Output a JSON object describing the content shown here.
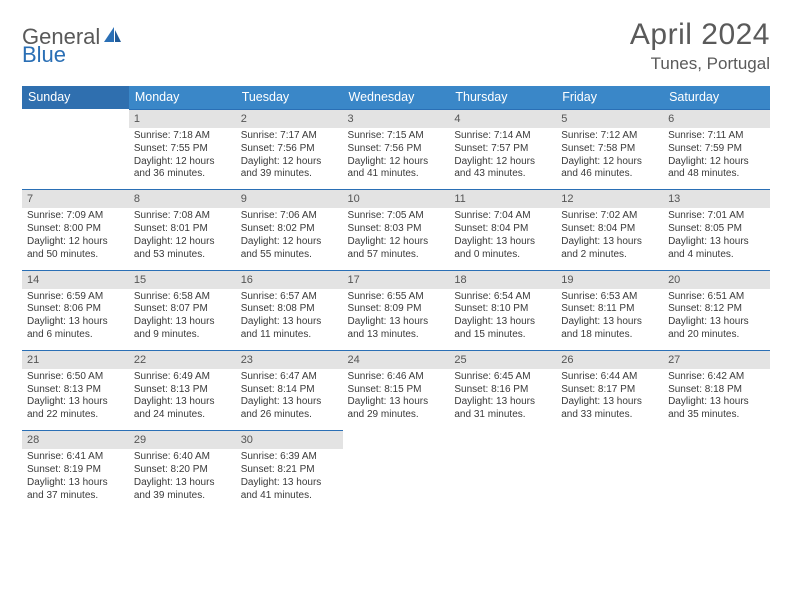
{
  "brand": {
    "general": "General",
    "blue": "Blue"
  },
  "title": "April 2024",
  "subtitle": "Tunes, Portugal",
  "colors": {
    "header_bg": "#3a87c8",
    "header_bg_sunday": "#2f6faf",
    "daynum_bg": "#e3e3e3",
    "daynum_border": "#2a6fb5",
    "text": "#3a3a3a",
    "title_text": "#5a5a5a",
    "brand_gray": "#595959",
    "brand_blue": "#2a6fb5",
    "background": "#ffffff"
  },
  "typography": {
    "title_fontsize": 30,
    "subtitle_fontsize": 17,
    "header_fontsize": 12.5,
    "daynum_fontsize": 11,
    "cell_fontsize": 10
  },
  "weekdays": [
    "Sunday",
    "Monday",
    "Tuesday",
    "Wednesday",
    "Thursday",
    "Friday",
    "Saturday"
  ],
  "weeks": [
    [
      {
        "n": "",
        "sr": "",
        "ss": "",
        "dl": ""
      },
      {
        "n": "1",
        "sr": "Sunrise: 7:18 AM",
        "ss": "Sunset: 7:55 PM",
        "dl": "Daylight: 12 hours and 36 minutes."
      },
      {
        "n": "2",
        "sr": "Sunrise: 7:17 AM",
        "ss": "Sunset: 7:56 PM",
        "dl": "Daylight: 12 hours and 39 minutes."
      },
      {
        "n": "3",
        "sr": "Sunrise: 7:15 AM",
        "ss": "Sunset: 7:56 PM",
        "dl": "Daylight: 12 hours and 41 minutes."
      },
      {
        "n": "4",
        "sr": "Sunrise: 7:14 AM",
        "ss": "Sunset: 7:57 PM",
        "dl": "Daylight: 12 hours and 43 minutes."
      },
      {
        "n": "5",
        "sr": "Sunrise: 7:12 AM",
        "ss": "Sunset: 7:58 PM",
        "dl": "Daylight: 12 hours and 46 minutes."
      },
      {
        "n": "6",
        "sr": "Sunrise: 7:11 AM",
        "ss": "Sunset: 7:59 PM",
        "dl": "Daylight: 12 hours and 48 minutes."
      }
    ],
    [
      {
        "n": "7",
        "sr": "Sunrise: 7:09 AM",
        "ss": "Sunset: 8:00 PM",
        "dl": "Daylight: 12 hours and 50 minutes."
      },
      {
        "n": "8",
        "sr": "Sunrise: 7:08 AM",
        "ss": "Sunset: 8:01 PM",
        "dl": "Daylight: 12 hours and 53 minutes."
      },
      {
        "n": "9",
        "sr": "Sunrise: 7:06 AM",
        "ss": "Sunset: 8:02 PM",
        "dl": "Daylight: 12 hours and 55 minutes."
      },
      {
        "n": "10",
        "sr": "Sunrise: 7:05 AM",
        "ss": "Sunset: 8:03 PM",
        "dl": "Daylight: 12 hours and 57 minutes."
      },
      {
        "n": "11",
        "sr": "Sunrise: 7:04 AM",
        "ss": "Sunset: 8:04 PM",
        "dl": "Daylight: 13 hours and 0 minutes."
      },
      {
        "n": "12",
        "sr": "Sunrise: 7:02 AM",
        "ss": "Sunset: 8:04 PM",
        "dl": "Daylight: 13 hours and 2 minutes."
      },
      {
        "n": "13",
        "sr": "Sunrise: 7:01 AM",
        "ss": "Sunset: 8:05 PM",
        "dl": "Daylight: 13 hours and 4 minutes."
      }
    ],
    [
      {
        "n": "14",
        "sr": "Sunrise: 6:59 AM",
        "ss": "Sunset: 8:06 PM",
        "dl": "Daylight: 13 hours and 6 minutes."
      },
      {
        "n": "15",
        "sr": "Sunrise: 6:58 AM",
        "ss": "Sunset: 8:07 PM",
        "dl": "Daylight: 13 hours and 9 minutes."
      },
      {
        "n": "16",
        "sr": "Sunrise: 6:57 AM",
        "ss": "Sunset: 8:08 PM",
        "dl": "Daylight: 13 hours and 11 minutes."
      },
      {
        "n": "17",
        "sr": "Sunrise: 6:55 AM",
        "ss": "Sunset: 8:09 PM",
        "dl": "Daylight: 13 hours and 13 minutes."
      },
      {
        "n": "18",
        "sr": "Sunrise: 6:54 AM",
        "ss": "Sunset: 8:10 PM",
        "dl": "Daylight: 13 hours and 15 minutes."
      },
      {
        "n": "19",
        "sr": "Sunrise: 6:53 AM",
        "ss": "Sunset: 8:11 PM",
        "dl": "Daylight: 13 hours and 18 minutes."
      },
      {
        "n": "20",
        "sr": "Sunrise: 6:51 AM",
        "ss": "Sunset: 8:12 PM",
        "dl": "Daylight: 13 hours and 20 minutes."
      }
    ],
    [
      {
        "n": "21",
        "sr": "Sunrise: 6:50 AM",
        "ss": "Sunset: 8:13 PM",
        "dl": "Daylight: 13 hours and 22 minutes."
      },
      {
        "n": "22",
        "sr": "Sunrise: 6:49 AM",
        "ss": "Sunset: 8:13 PM",
        "dl": "Daylight: 13 hours and 24 minutes."
      },
      {
        "n": "23",
        "sr": "Sunrise: 6:47 AM",
        "ss": "Sunset: 8:14 PM",
        "dl": "Daylight: 13 hours and 26 minutes."
      },
      {
        "n": "24",
        "sr": "Sunrise: 6:46 AM",
        "ss": "Sunset: 8:15 PM",
        "dl": "Daylight: 13 hours and 29 minutes."
      },
      {
        "n": "25",
        "sr": "Sunrise: 6:45 AM",
        "ss": "Sunset: 8:16 PM",
        "dl": "Daylight: 13 hours and 31 minutes."
      },
      {
        "n": "26",
        "sr": "Sunrise: 6:44 AM",
        "ss": "Sunset: 8:17 PM",
        "dl": "Daylight: 13 hours and 33 minutes."
      },
      {
        "n": "27",
        "sr": "Sunrise: 6:42 AM",
        "ss": "Sunset: 8:18 PM",
        "dl": "Daylight: 13 hours and 35 minutes."
      }
    ],
    [
      {
        "n": "28",
        "sr": "Sunrise: 6:41 AM",
        "ss": "Sunset: 8:19 PM",
        "dl": "Daylight: 13 hours and 37 minutes."
      },
      {
        "n": "29",
        "sr": "Sunrise: 6:40 AM",
        "ss": "Sunset: 8:20 PM",
        "dl": "Daylight: 13 hours and 39 minutes."
      },
      {
        "n": "30",
        "sr": "Sunrise: 6:39 AM",
        "ss": "Sunset: 8:21 PM",
        "dl": "Daylight: 13 hours and 41 minutes."
      },
      {
        "n": "",
        "sr": "",
        "ss": "",
        "dl": ""
      },
      {
        "n": "",
        "sr": "",
        "ss": "",
        "dl": ""
      },
      {
        "n": "",
        "sr": "",
        "ss": "",
        "dl": ""
      },
      {
        "n": "",
        "sr": "",
        "ss": "",
        "dl": ""
      }
    ]
  ]
}
